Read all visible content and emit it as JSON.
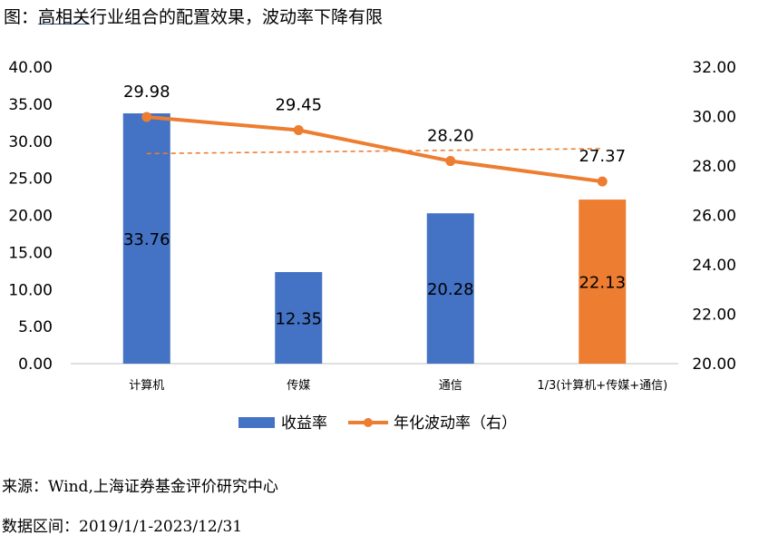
{
  "title_prefix": "图：",
  "title_highlight": "高相关",
  "title_rest": "行业组合的配置效果，波动率下降有限",
  "source_text": "来源：Wind,上海证券基金评价研究中心",
  "range_text": "数据区间：2019/1/1-2023/12/31",
  "chart_data": {
    "type": "bar",
    "categories": [
      "计算机",
      "传媒",
      "通信",
      "1/3(计算机+传媒+通信)"
    ],
    "series": [
      {
        "name": "收益率",
        "type": "bar",
        "axis": "left",
        "values": [
          33.76,
          12.35,
          20.28,
          22.13
        ],
        "labels": [
          "33.76",
          "12.35",
          "20.28",
          "22.13"
        ],
        "colors": [
          "#4472c4",
          "#4472c4",
          "#4472c4",
          "#ed7d31"
        ]
      },
      {
        "name": "年化波动率（右）",
        "type": "line",
        "axis": "right",
        "values": [
          29.98,
          29.45,
          28.2,
          27.37
        ],
        "labels": [
          "29.98",
          "29.45",
          "28.20",
          "27.37"
        ],
        "color": "#ed7d31"
      }
    ],
    "trendline": {
      "axis": "right",
      "start": 28.5,
      "end": 28.7,
      "color": "#ed7d31",
      "style": "dashed"
    },
    "left_axis": {
      "ylim": [
        0,
        40
      ],
      "ticks": [
        "0.00",
        "5.00",
        "10.00",
        "15.00",
        "20.00",
        "25.00",
        "30.00",
        "35.00",
        "40.00"
      ]
    },
    "right_axis": {
      "ylim": [
        20,
        32
      ],
      "ticks": [
        "20.00",
        "22.00",
        "24.00",
        "26.00",
        "28.00",
        "30.00",
        "32.00"
      ]
    },
    "legend_position": "bottom-center",
    "grid": false
  }
}
